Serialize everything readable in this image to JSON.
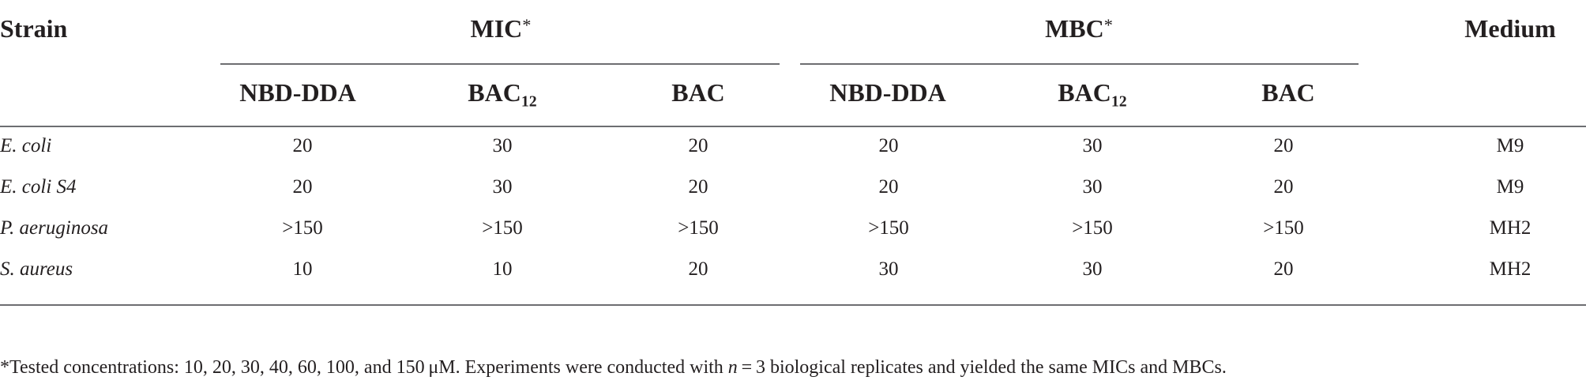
{
  "table": {
    "header": {
      "strain": "Strain",
      "mic": "MIC",
      "mbc": "MBC",
      "group_marker": "*",
      "medium": "Medium",
      "sub_columns": [
        {
          "base": "NBD-DDA",
          "sub": ""
        },
        {
          "base": "BAC",
          "sub": "12"
        },
        {
          "base": "BAC",
          "sub": ""
        },
        {
          "base": "NBD-DDA",
          "sub": ""
        },
        {
          "base": "BAC",
          "sub": "12"
        },
        {
          "base": "BAC",
          "sub": ""
        }
      ]
    },
    "rows": [
      {
        "strain": "E. coli",
        "values": [
          "20",
          "30",
          "20",
          "20",
          "30",
          "20"
        ],
        "medium": "M9"
      },
      {
        "strain": "E. coli S4",
        "values": [
          "20",
          "30",
          "20",
          "20",
          "30",
          "20"
        ],
        "medium": "M9"
      },
      {
        "strain": "P. aeruginosa",
        "values": [
          ">150",
          ">150",
          ">150",
          ">150",
          ">150",
          ">150"
        ],
        "medium": "MH2"
      },
      {
        "strain": "S. aureus",
        "values": [
          "10",
          "10",
          "20",
          "30",
          "30",
          "20"
        ],
        "medium": "MH2"
      }
    ]
  },
  "footnote": {
    "marker": "*",
    "part1": "Tested concentrations: 10, 20, 30, 40, 60, 100, and 150 μM. Experiments were conducted with ",
    "n_var": "n",
    "part2": " = 3 biological replicates and yielded the same MICs and MBCs."
  }
}
